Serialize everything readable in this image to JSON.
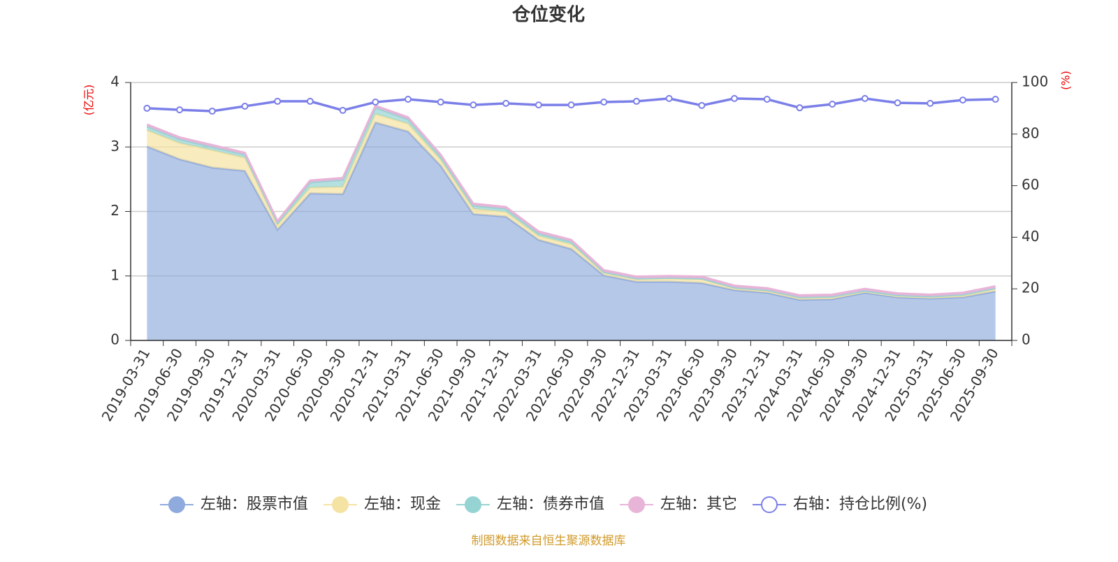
{
  "chart_data": {
    "type": "area",
    "stacked": true,
    "title": "仓位变化",
    "y_label": "(亿元)",
    "y2_label": "(%)",
    "source": "制图数据来自恒生聚源数据库",
    "categories": [
      "2019-03-31",
      "2019-06-30",
      "2019-09-30",
      "2019-12-31",
      "2020-03-31",
      "2020-06-30",
      "2020-09-30",
      "2020-12-31",
      "2021-03-31",
      "2021-06-30",
      "2021-09-30",
      "2021-12-31",
      "2022-03-31",
      "2022-06-30",
      "2022-09-30",
      "2022-12-31",
      "2023-03-31",
      "2023-06-30",
      "2023-09-30",
      "2023-12-31",
      "2024-03-31",
      "2024-06-30",
      "2024-09-30",
      "2024-12-31",
      "2025-03-31",
      "2025-06-30",
      "2025-09-30"
    ],
    "ylim": [
      0,
      4
    ],
    "yticks": [
      0,
      1,
      2,
      3,
      4
    ],
    "y2lim": [
      0,
      100
    ],
    "y2ticks": [
      0,
      20,
      40,
      60,
      80,
      100
    ],
    "grid": true,
    "series": [
      {
        "name": "左轴：股票市值",
        "color": "#8faadc",
        "values": [
          3.01,
          2.81,
          2.68,
          2.63,
          1.72,
          2.28,
          2.27,
          3.38,
          3.24,
          2.71,
          1.96,
          1.92,
          1.56,
          1.42,
          1.01,
          0.91,
          0.91,
          0.89,
          0.78,
          0.74,
          0.63,
          0.64,
          0.74,
          0.67,
          0.65,
          0.67,
          0.76
        ]
      },
      {
        "name": "左轴：现金",
        "color": "#f5e3a3",
        "values": [
          0.25,
          0.25,
          0.27,
          0.2,
          0.07,
          0.09,
          0.11,
          0.13,
          0.12,
          0.09,
          0.08,
          0.07,
          0.06,
          0.07,
          0.04,
          0.04,
          0.05,
          0.06,
          0.03,
          0.03,
          0.03,
          0.03,
          0.02,
          0.02,
          0.02,
          0.03,
          0.04
        ]
      },
      {
        "name": "左轴：债券市值",
        "color": "#96d3d3",
        "values": [
          0.06,
          0.06,
          0.05,
          0.05,
          0.03,
          0.08,
          0.11,
          0.1,
          0.07,
          0.05,
          0.05,
          0.05,
          0.04,
          0.04,
          0.01,
          0.01,
          0.01,
          0.01,
          0.01,
          0.01,
          0.01,
          0.01,
          0.01,
          0.01,
          0.01,
          0.01,
          0.01
        ]
      },
      {
        "name": "左轴：其它",
        "color": "#e8b4d8",
        "values": [
          0.03,
          0.03,
          0.03,
          0.03,
          0.03,
          0.03,
          0.03,
          0.03,
          0.03,
          0.03,
          0.03,
          0.03,
          0.03,
          0.03,
          0.03,
          0.03,
          0.03,
          0.03,
          0.03,
          0.03,
          0.03,
          0.03,
          0.03,
          0.03,
          0.03,
          0.03,
          0.03
        ]
      },
      {
        "name": "右轴：持仓比例(%)",
        "color": "#7b7fe8",
        "type": "line",
        "axis": "y2",
        "values": [
          90.0,
          89.4,
          88.9,
          90.8,
          92.7,
          92.7,
          89.2,
          92.4,
          93.5,
          92.4,
          91.3,
          91.9,
          91.3,
          91.3,
          92.4,
          92.7,
          93.8,
          91.1,
          93.8,
          93.5,
          90.2,
          91.6,
          93.8,
          92.1,
          91.9,
          93.2,
          93.5
        ]
      }
    ]
  }
}
